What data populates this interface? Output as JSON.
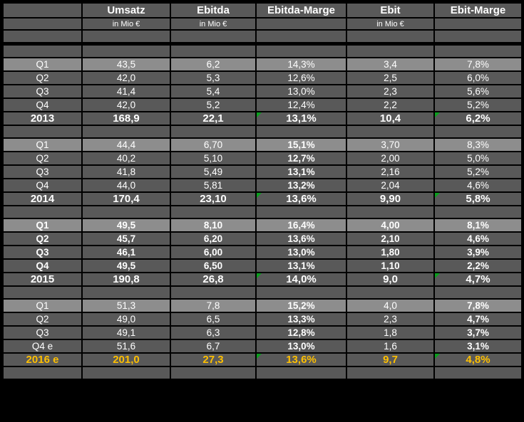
{
  "colors": {
    "background": "#000000",
    "cell_fill": "#595959",
    "q1_row_fill": "#8d8d8d",
    "text": "#ffffff",
    "forecast_text": "#ffc000",
    "error_triangle": "#0aa01e",
    "gridline": "#000000"
  },
  "table": {
    "columns": [
      {
        "id": "quarter",
        "header": "",
        "subheader": ""
      },
      {
        "id": "umsatz",
        "header": "Umsatz",
        "subheader": "in Mio €"
      },
      {
        "id": "ebitda",
        "header": "Ebitda",
        "subheader": "in Mio €"
      },
      {
        "id": "ebitda-marge",
        "header": "Ebitda-Marge",
        "subheader": ""
      },
      {
        "id": "ebit",
        "header": "Ebit",
        "subheader": "in Mio €"
      },
      {
        "id": "ebit-marge",
        "header": "Ebit-Marge",
        "subheader": ""
      }
    ],
    "sections": [
      {
        "year": "2013",
        "rows": [
          {
            "cells": [
              "Q1",
              "43,5",
              "6,2",
              "14,3%",
              "3,4",
              "7,8%"
            ],
            "highlight": true,
            "bold_cols": []
          },
          {
            "cells": [
              "Q2",
              "42,0",
              "5,3",
              "12,6%",
              "2,5",
              "6,0%"
            ],
            "highlight": false,
            "bold_cols": []
          },
          {
            "cells": [
              "Q3",
              "41,4",
              "5,4",
              "13,0%",
              "2,3",
              "5,6%"
            ],
            "highlight": false,
            "bold_cols": []
          },
          {
            "cells": [
              "Q4",
              "42,0",
              "5,2",
              "12,4%",
              "2,2",
              "5,2%"
            ],
            "highlight": false,
            "bold_cols": []
          }
        ],
        "total_row": {
          "cells": [
            "2013",
            "168,9",
            "22,1",
            "13,1%",
            "10,4",
            "6,2%"
          ],
          "gold": false,
          "triangle_cols": [
            3,
            5
          ]
        }
      },
      {
        "year": "2014",
        "rows": [
          {
            "cells": [
              "Q1",
              "44,4",
              "6,70",
              "15,1%",
              "3,70",
              "8,3%"
            ],
            "highlight": true,
            "bold_cols": [
              3
            ]
          },
          {
            "cells": [
              "Q2",
              "40,2",
              "5,10",
              "12,7%",
              "2,00",
              "5,0%"
            ],
            "highlight": false,
            "bold_cols": [
              3
            ]
          },
          {
            "cells": [
              "Q3",
              "41,8",
              "5,49",
              "13,1%",
              "2,16",
              "5,2%"
            ],
            "highlight": false,
            "bold_cols": [
              3
            ]
          },
          {
            "cells": [
              "Q4",
              "44,0",
              "5,81",
              "13,2%",
              "2,04",
              "4,6%"
            ],
            "highlight": false,
            "bold_cols": [
              3
            ]
          }
        ],
        "total_row": {
          "cells": [
            "2014",
            "170,4",
            "23,10",
            "13,6%",
            "9,90",
            "5,8%"
          ],
          "gold": false,
          "triangle_cols": [
            3,
            5
          ]
        }
      },
      {
        "year": "2015",
        "rows": [
          {
            "cells": [
              "Q1",
              "49,5",
              "8,10",
              "16,4%",
              "4,00",
              "8,1%"
            ],
            "highlight": true,
            "bold_cols": [
              0,
              1,
              2,
              3,
              4,
              5
            ]
          },
          {
            "cells": [
              "Q2",
              "45,7",
              "6,20",
              "13,6%",
              "2,10",
              "4,6%"
            ],
            "highlight": false,
            "bold_cols": [
              0,
              1,
              2,
              3,
              4,
              5
            ]
          },
          {
            "cells": [
              "Q3",
              "46,1",
              "6,00",
              "13,0%",
              "1,80",
              "3,9%"
            ],
            "highlight": false,
            "bold_cols": [
              0,
              1,
              2,
              3,
              4,
              5
            ]
          },
          {
            "cells": [
              "Q4",
              "49,5",
              "6,50",
              "13,1%",
              "1,10",
              "2,2%"
            ],
            "highlight": false,
            "bold_cols": [
              0,
              1,
              2,
              3,
              4,
              5
            ]
          }
        ],
        "total_row": {
          "cells": [
            "2015",
            "190,8",
            "26,8",
            "14,0%",
            "9,0",
            "4,7%"
          ],
          "gold": false,
          "triangle_cols": [
            3,
            5
          ]
        }
      },
      {
        "year": "2016 e",
        "rows": [
          {
            "cells": [
              "Q1",
              "51,3",
              "7,8",
              "15,2%",
              "4,0",
              "7,8%"
            ],
            "highlight": true,
            "bold_cols": [
              3,
              5
            ]
          },
          {
            "cells": [
              "Q2",
              "49,0",
              "6,5",
              "13,3%",
              "2,3",
              "4,7%"
            ],
            "highlight": false,
            "bold_cols": [
              3,
              5
            ]
          },
          {
            "cells": [
              "Q3",
              "49,1",
              "6,3",
              "12,8%",
              "1,8",
              "3,7%"
            ],
            "highlight": false,
            "bold_cols": [
              3,
              5
            ]
          },
          {
            "cells": [
              "Q4 e",
              "51,6",
              "6,7",
              "13,0%",
              "1,6",
              "3,1%"
            ],
            "highlight": false,
            "bold_cols": [
              3,
              5
            ]
          }
        ],
        "total_row": {
          "cells": [
            "2016 e",
            "201,0",
            "27,3",
            "13,6%",
            "9,7",
            "4,8%"
          ],
          "gold": true,
          "triangle_cols": [
            3,
            5
          ]
        }
      }
    ]
  },
  "chart_data": {
    "type": "table",
    "columns": [
      "",
      "Umsatz in Mio €",
      "Ebitda in Mio €",
      "Ebitda-Marge",
      "Ebit in Mio €",
      "Ebit-Marge"
    ],
    "rows": [
      [
        "Q1",
        "43,5",
        "6,2",
        "14,3%",
        "3,4",
        "7,8%"
      ],
      [
        "Q2",
        "42,0",
        "5,3",
        "12,6%",
        "2,5",
        "6,0%"
      ],
      [
        "Q3",
        "41,4",
        "5,4",
        "13,0%",
        "2,3",
        "5,6%"
      ],
      [
        "Q4",
        "42,0",
        "5,2",
        "12,4%",
        "2,2",
        "5,2%"
      ],
      [
        "2013",
        "168,9",
        "22,1",
        "13,1%",
        "10,4",
        "6,2%"
      ],
      [
        "Q1",
        "44,4",
        "6,70",
        "15,1%",
        "3,70",
        "8,3%"
      ],
      [
        "Q2",
        "40,2",
        "5,10",
        "12,7%",
        "2,00",
        "5,0%"
      ],
      [
        "Q3",
        "41,8",
        "5,49",
        "13,1%",
        "2,16",
        "5,2%"
      ],
      [
        "Q4",
        "44,0",
        "5,81",
        "13,2%",
        "2,04",
        "4,6%"
      ],
      [
        "2014",
        "170,4",
        "23,10",
        "13,6%",
        "9,90",
        "5,8%"
      ],
      [
        "Q1",
        "49,5",
        "8,10",
        "16,4%",
        "4,00",
        "8,1%"
      ],
      [
        "Q2",
        "45,7",
        "6,20",
        "13,6%",
        "2,10",
        "4,6%"
      ],
      [
        "Q3",
        "46,1",
        "6,00",
        "13,0%",
        "1,80",
        "3,9%"
      ],
      [
        "Q4",
        "49,5",
        "6,50",
        "13,1%",
        "1,10",
        "2,2%"
      ],
      [
        "2015",
        "190,8",
        "26,8",
        "14,0%",
        "9,0",
        "4,7%"
      ],
      [
        "Q1",
        "51,3",
        "7,8",
        "15,2%",
        "4,0",
        "7,8%"
      ],
      [
        "Q2",
        "49,0",
        "6,5",
        "13,3%",
        "2,3",
        "4,7%"
      ],
      [
        "Q3",
        "49,1",
        "6,3",
        "12,8%",
        "1,8",
        "3,7%"
      ],
      [
        "Q4 e",
        "51,6",
        "6,7",
        "13,0%",
        "1,6",
        "3,1%"
      ],
      [
        "2016 e",
        "201,0",
        "27,3",
        "13,6%",
        "9,7",
        "4,8%"
      ]
    ]
  }
}
